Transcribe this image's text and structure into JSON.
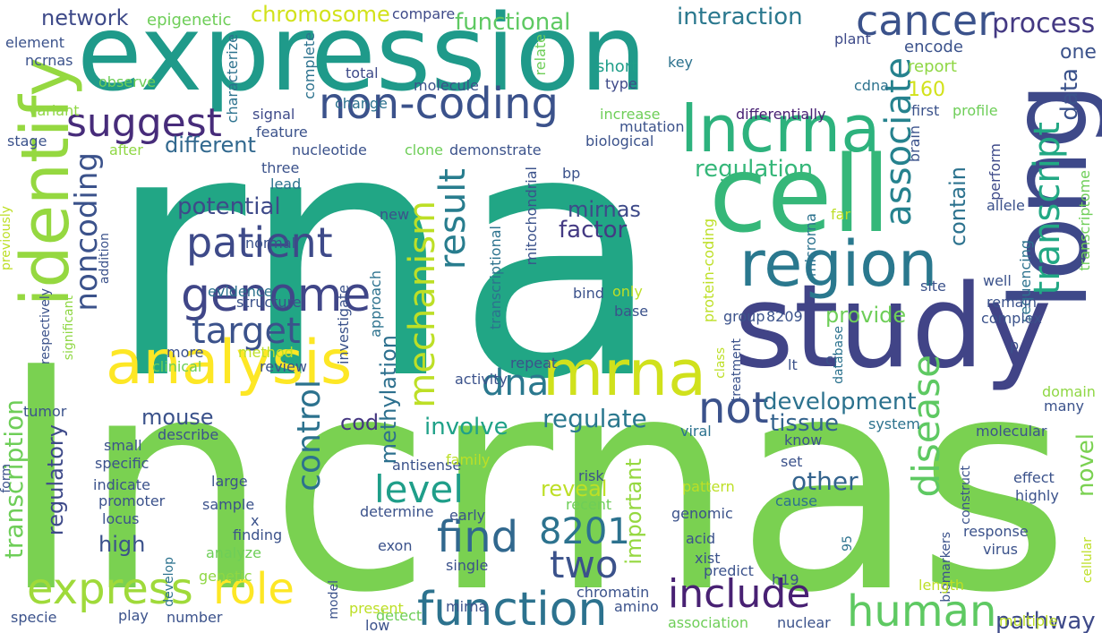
{
  "words": [
    {
      "text": "rna",
      "color": "#21a685"
    },
    {
      "text": "lncrnas",
      "color": "#7ad151"
    },
    {
      "text": "expression",
      "color": "#1f9a8a"
    },
    {
      "text": "long",
      "color": "#3e4989"
    },
    {
      "text": "study",
      "color": "#414487"
    },
    {
      "text": "cell",
      "color": "#35b779"
    },
    {
      "text": "lncrna",
      "color": "#2db27d"
    },
    {
      "text": "identify",
      "color": "#95d840"
    },
    {
      "text": "region",
      "color": "#2a788e"
    },
    {
      "text": "analysis",
      "color": "#fde725"
    },
    {
      "text": "mrna",
      "color": "#d0e11c"
    },
    {
      "text": "non-coding",
      "color": "#3b528b"
    },
    {
      "text": "genome",
      "color": "#404688"
    },
    {
      "text": "patient",
      "color": "#3e4a89"
    },
    {
      "text": "suggest",
      "color": "#472c7a"
    },
    {
      "text": "cancer",
      "color": "#3b528b"
    },
    {
      "text": "express",
      "color": "#9fda3a"
    },
    {
      "text": "role",
      "color": "#fde725"
    },
    {
      "text": "function",
      "color": "#2c728e"
    },
    {
      "text": "human",
      "color": "#5ec962"
    },
    {
      "text": "include",
      "color": "#482173"
    },
    {
      "text": "two",
      "color": "#3b528b"
    },
    {
      "text": "find",
      "color": "#31688e"
    },
    {
      "text": "level",
      "color": "#1f9e89"
    },
    {
      "text": "8201",
      "color": "#2c728e"
    },
    {
      "text": "dna",
      "color": "#2a788e"
    },
    {
      "text": "not",
      "color": "#3b528b"
    },
    {
      "text": "target",
      "color": "#3b528b"
    },
    {
      "text": "result",
      "color": "#287d8e"
    },
    {
      "text": "mechanism",
      "color": "#bddf26"
    },
    {
      "text": "disease",
      "color": "#5ec962"
    },
    {
      "text": "associate",
      "color": "#26828e"
    },
    {
      "text": "transcript",
      "color": "#22a884"
    },
    {
      "text": "control",
      "color": "#2c728e"
    },
    {
      "text": "noncoding",
      "color": "#3b528b"
    },
    {
      "text": "transcription",
      "color": "#6ece58"
    },
    {
      "text": "process",
      "color": "#443983"
    },
    {
      "text": "interaction",
      "color": "#2a788e"
    },
    {
      "text": "chromosome",
      "color": "#d2e21b"
    },
    {
      "text": "functional",
      "color": "#5ec962"
    },
    {
      "text": "network",
      "color": "#3e4a89"
    },
    {
      "text": "regulation",
      "color": "#35b779"
    },
    {
      "text": "development",
      "color": "#2c728e"
    },
    {
      "text": "potential",
      "color": "#3e4a89"
    },
    {
      "text": "different",
      "color": "#31688e"
    },
    {
      "text": "mirnas",
      "color": "#3e4a89"
    },
    {
      "text": "factor",
      "color": "#443a83"
    },
    {
      "text": "provide",
      "color": "#6ece58"
    },
    {
      "text": "regulate",
      "color": "#2a788e"
    },
    {
      "text": "involve",
      "color": "#1fa188"
    },
    {
      "text": "reveal",
      "color": "#bddf26"
    },
    {
      "text": "other",
      "color": "#33638d"
    },
    {
      "text": "pathway",
      "color": "#3e4a89"
    },
    {
      "text": "tissue",
      "color": "#33638d"
    },
    {
      "text": "mouse",
      "color": "#3b528b"
    },
    {
      "text": "cod",
      "color": "#453781"
    },
    {
      "text": "high",
      "color": "#3b528b"
    },
    {
      "text": "important",
      "color": "#95d840"
    },
    {
      "text": "methylation",
      "color": "#2d708e"
    },
    {
      "text": "data",
      "color": "#3b528b"
    },
    {
      "text": "contain",
      "color": "#2c728e"
    },
    {
      "text": "novel",
      "color": "#7ad151"
    },
    {
      "text": "regulatory",
      "color": "#3e4a89"
    },
    {
      "text": "epigenetic",
      "color": "#6ece58"
    },
    {
      "text": "element",
      "color": "#3b528b"
    },
    {
      "text": "ncrnas",
      "color": "#3b528b"
    },
    {
      "text": "observe",
      "color": "#6ece58"
    },
    {
      "text": "variant",
      "color": "#8fd744"
    },
    {
      "text": "stage",
      "color": "#3b528b"
    },
    {
      "text": "characterize",
      "color": "#2c728e"
    },
    {
      "text": "complete",
      "color": "#2c728e"
    },
    {
      "text": "total",
      "color": "#3e4a89"
    },
    {
      "text": "compare",
      "color": "#3e4a89"
    },
    {
      "text": "molecule",
      "color": "#3b528b"
    },
    {
      "text": "relate",
      "color": "#6ece58"
    },
    {
      "text": "short",
      "color": "#1f9e89"
    },
    {
      "text": "type",
      "color": "#3e4a89"
    },
    {
      "text": "key",
      "color": "#2c728e"
    },
    {
      "text": "plant",
      "color": "#3e4a89"
    },
    {
      "text": "encode",
      "color": "#3b528b"
    },
    {
      "text": "report",
      "color": "#8fd744"
    },
    {
      "text": "one",
      "color": "#3b528b"
    },
    {
      "text": "cdna",
      "color": "#2c728e"
    },
    {
      "text": "160",
      "color": "#d2e21b"
    },
    {
      "text": "first",
      "color": "#3b528b"
    },
    {
      "text": "profile",
      "color": "#6ece58"
    },
    {
      "text": "increase",
      "color": "#6ece58"
    },
    {
      "text": "differentially",
      "color": "#482173"
    },
    {
      "text": "mutation",
      "color": "#3b528b"
    },
    {
      "text": "biological",
      "color": "#3b528b"
    },
    {
      "text": "signal",
      "color": "#3e4a89"
    },
    {
      "text": "feature",
      "color": "#3b528b"
    },
    {
      "text": "change",
      "color": "#2c728e"
    },
    {
      "text": "nucleotide",
      "color": "#3b528b"
    },
    {
      "text": "clone",
      "color": "#6ece58"
    },
    {
      "text": "demonstrate",
      "color": "#3b528b"
    },
    {
      "text": "after",
      "color": "#8fd744"
    },
    {
      "text": "three",
      "color": "#3b528b"
    },
    {
      "text": "lead",
      "color": "#2c728e"
    },
    {
      "text": "brain",
      "color": "#3b528b"
    },
    {
      "text": "allele",
      "color": "#3b528b"
    },
    {
      "text": "far",
      "color": "#bddf26"
    },
    {
      "text": "site",
      "color": "#3b528b"
    },
    {
      "text": "well",
      "color": "#3b528b"
    },
    {
      "text": "perform",
      "color": "#3e4a89"
    },
    {
      "text": "sequencing",
      "color": "#2c728e"
    },
    {
      "text": "transcriptome",
      "color": "#6ece58"
    },
    {
      "text": "remain",
      "color": "#3b528b"
    },
    {
      "text": "complex",
      "color": "#3b528b"
    },
    {
      "text": "microrna",
      "color": "#2c728e"
    },
    {
      "text": "new",
      "color": "#3b528b"
    },
    {
      "text": "normal",
      "color": "#3b528b"
    },
    {
      "text": "evidence",
      "color": "#2c728e"
    },
    {
      "text": "structure",
      "color": "#3b528b"
    },
    {
      "text": "more",
      "color": "#3b528b"
    },
    {
      "text": "method",
      "color": "#bddf26"
    },
    {
      "text": "clinical",
      "color": "#6ece58"
    },
    {
      "text": "review",
      "color": "#3b528b"
    },
    {
      "text": "investigate",
      "color": "#3b528b"
    },
    {
      "text": "approach",
      "color": "#2c728e"
    },
    {
      "text": "mitochondrial",
      "color": "#3b528b"
    },
    {
      "text": "transcriptional",
      "color": "#2c728e"
    },
    {
      "text": "bp",
      "color": "#3b528b"
    },
    {
      "text": "bind",
      "color": "#3b528b"
    },
    {
      "text": "only",
      "color": "#bddf26"
    },
    {
      "text": "base",
      "color": "#3b528b"
    },
    {
      "text": "group",
      "color": "#3b528b"
    },
    {
      "text": "8209",
      "color": "#3b528b"
    },
    {
      "text": "protein-coding",
      "color": "#bddf26"
    },
    {
      "text": "repeat",
      "color": "#3b528b"
    },
    {
      "text": "activity",
      "color": "#3b528b"
    },
    {
      "text": "class",
      "color": "#bddf26"
    },
    {
      "text": "treatment",
      "color": "#3b528b"
    },
    {
      "text": "lt",
      "color": "#3b528b"
    },
    {
      "text": "ci",
      "color": "#3b528b"
    },
    {
      "text": "database",
      "color": "#2c728e"
    },
    {
      "text": "p",
      "color": "#3b528b"
    },
    {
      "text": "domain",
      "color": "#8fd744"
    },
    {
      "text": "many",
      "color": "#3b528b"
    },
    {
      "text": "system",
      "color": "#2c728e"
    },
    {
      "text": "molecular",
      "color": "#3b528b"
    },
    {
      "text": "know",
      "color": "#3b528b"
    },
    {
      "text": "viral",
      "color": "#2c728e"
    },
    {
      "text": "previously",
      "color": "#bddf26"
    },
    {
      "text": "respectively",
      "color": "#3b528b"
    },
    {
      "text": "significant",
      "color": "#8fd744"
    },
    {
      "text": "addition",
      "color": "#3b528b"
    },
    {
      "text": "tumor",
      "color": "#3b528b"
    },
    {
      "text": "describe",
      "color": "#3b528b"
    },
    {
      "text": "small",
      "color": "#3b528b"
    },
    {
      "text": "specific",
      "color": "#3b528b"
    },
    {
      "text": "form",
      "color": "#3b528b"
    },
    {
      "text": "large",
      "color": "#3b528b"
    },
    {
      "text": "indicate",
      "color": "#3b528b"
    },
    {
      "text": "promoter",
      "color": "#3b528b"
    },
    {
      "text": "locus",
      "color": "#3b528b"
    },
    {
      "text": "sample",
      "color": "#3b528b"
    },
    {
      "text": "develop",
      "color": "#2c728e"
    },
    {
      "text": "finding",
      "color": "#3b528b"
    },
    {
      "text": "analyze",
      "color": "#6ece58"
    },
    {
      "text": "x",
      "color": "#3b528b"
    },
    {
      "text": "genetic",
      "color": "#8fd744"
    },
    {
      "text": "antisense",
      "color": "#3b528b"
    },
    {
      "text": "family",
      "color": "#bddf26"
    },
    {
      "text": "determine",
      "color": "#3b528b"
    },
    {
      "text": "early",
      "color": "#3b528b"
    },
    {
      "text": "recent",
      "color": "#6ece58"
    },
    {
      "text": "risk",
      "color": "#3b528b"
    },
    {
      "text": "pattern",
      "color": "#bddf26"
    },
    {
      "text": "genomic",
      "color": "#3b528b"
    },
    {
      "text": "cause",
      "color": "#2c728e"
    },
    {
      "text": "set",
      "color": "#3b528b"
    },
    {
      "text": "construct",
      "color": "#3b528b"
    },
    {
      "text": "biomarkers",
      "color": "#3b528b"
    },
    {
      "text": "effect",
      "color": "#3b528b"
    },
    {
      "text": "highly",
      "color": "#3b528b"
    },
    {
      "text": "response",
      "color": "#3b528b"
    },
    {
      "text": "virus",
      "color": "#3b528b"
    },
    {
      "text": "cellular",
      "color": "#bddf26"
    },
    {
      "text": "acid",
      "color": "#3b528b"
    },
    {
      "text": "xist",
      "color": "#3b528b"
    },
    {
      "text": "95",
      "color": "#2c728e"
    },
    {
      "text": "exon",
      "color": "#3b528b"
    },
    {
      "text": "single",
      "color": "#3b528b"
    },
    {
      "text": "predict",
      "color": "#3b528b"
    },
    {
      "text": "h19",
      "color": "#3b528b"
    },
    {
      "text": "mirna",
      "color": "#3b528b"
    },
    {
      "text": "detect",
      "color": "#6ece58"
    },
    {
      "text": "chromatin",
      "color": "#3b528b"
    },
    {
      "text": "length",
      "color": "#bddf26"
    },
    {
      "text": "model",
      "color": "#3b528b"
    },
    {
      "text": "present",
      "color": "#bddf26"
    },
    {
      "text": "amino",
      "color": "#3b528b"
    },
    {
      "text": "association",
      "color": "#6ece58"
    },
    {
      "text": "nuclear",
      "color": "#3b528b"
    },
    {
      "text": "specie",
      "color": "#3b528b"
    },
    {
      "text": "play",
      "color": "#3b528b"
    },
    {
      "text": "number",
      "color": "#3b528b"
    },
    {
      "text": "low",
      "color": "#3b528b"
    },
    {
      "text": "multiple",
      "color": "#bddf26"
    }
  ]
}
